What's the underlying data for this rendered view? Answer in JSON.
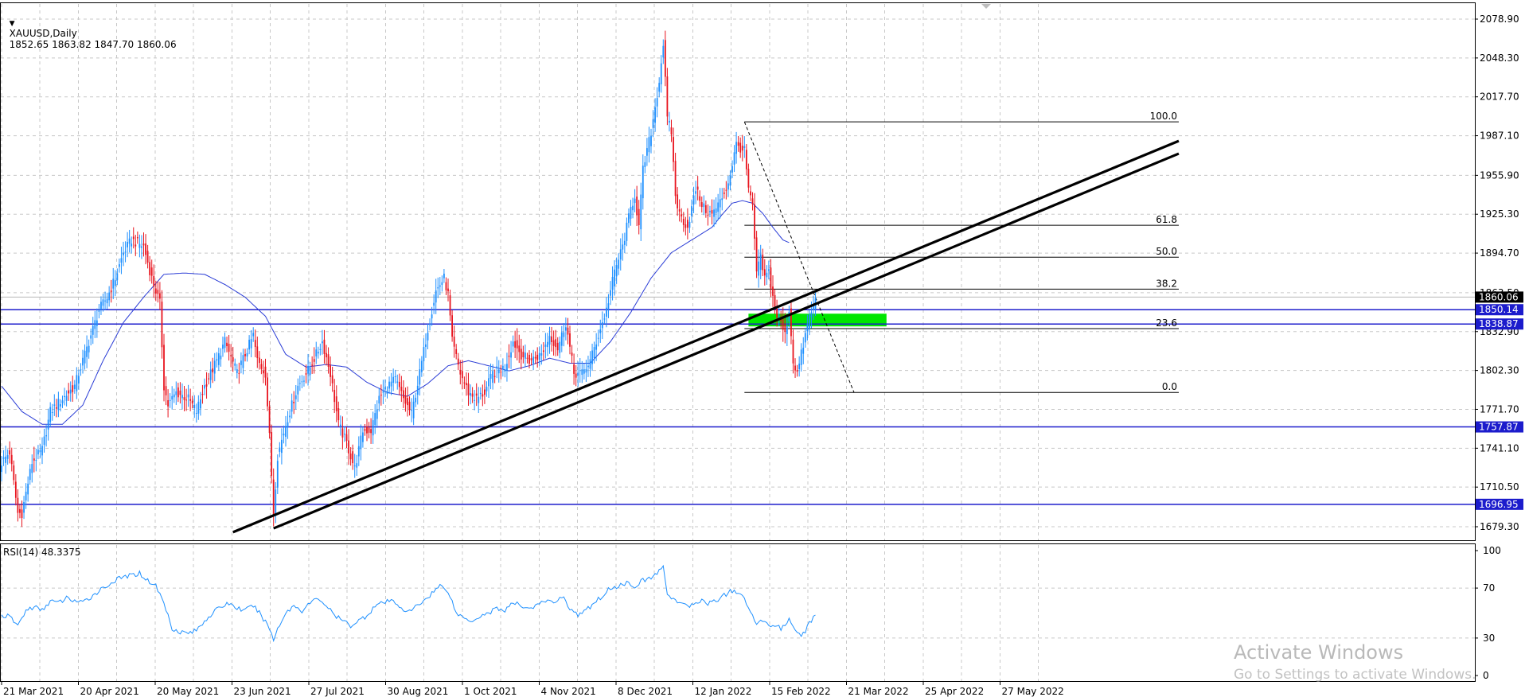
{
  "header": {
    "symbol": "XAUUSD,Daily",
    "ohlc": "1852.65 1863.82 1847.70 1860.06"
  },
  "rsi_header": "RSI(14) 48.3375",
  "watermark": {
    "line1": "Activate Windows",
    "line2": "Go to Settings to activate Windows."
  },
  "colors": {
    "bull": "#1e90ff",
    "bear": "#e8141e",
    "ma": "#2a3cd6",
    "hline": "#1c1ccc",
    "trend": "#000000",
    "zone": "#00e600",
    "grid": "#c8c8c8"
  },
  "chart_data": [
    {
      "type": "candlestick",
      "title": "XAUUSD,Daily",
      "ylim": [
        1665,
        2095
      ],
      "y_ticks": [
        "2078.90",
        "2048.30",
        "2017.70",
        "1987.10",
        "1955.90",
        "1925.30",
        "1894.70",
        "1863.50",
        "1832.90",
        "1802.30",
        "1771.70",
        "1741.10",
        "1710.50",
        "1679.30"
      ],
      "x_tick_labels": [
        "21 Mar 2021",
        "20 Apr 2021",
        "20 May 2021",
        "23 Jun 2021",
        "27 Jul 2021",
        "30 Aug 2021",
        "1 Oct 2021",
        "4 Nov 2021",
        "8 Dec 2021",
        "12 Jan 2022",
        "15 Feb 2022",
        "21 Mar 2022",
        "25 Apr 2022",
        "27 May 2022"
      ],
      "close_anchors": [
        [
          0,
          1730
        ],
        [
          4,
          1738
        ],
        [
          8,
          1690
        ],
        [
          10,
          1690
        ],
        [
          15,
          1730
        ],
        [
          20,
          1740
        ],
        [
          24,
          1770
        ],
        [
          30,
          1780
        ],
        [
          36,
          1790
        ],
        [
          40,
          1810
        ],
        [
          44,
          1830
        ],
        [
          48,
          1850
        ],
        [
          52,
          1860
        ],
        [
          56,
          1875
        ],
        [
          60,
          1895
        ],
        [
          64,
          1905
        ],
        [
          70,
          1900
        ],
        [
          74,
          1875
        ],
        [
          78,
          1855
        ],
        [
          80,
          1790
        ],
        [
          82,
          1775
        ],
        [
          86,
          1785
        ],
        [
          92,
          1780
        ],
        [
          96,
          1770
        ],
        [
          100,
          1790
        ],
        [
          106,
          1810
        ],
        [
          110,
          1825
        ],
        [
          116,
          1800
        ],
        [
          120,
          1815
        ],
        [
          124,
          1830
        ],
        [
          126,
          1810
        ],
        [
          130,
          1800
        ],
        [
          132,
          1750
        ],
        [
          134,
          1690
        ],
        [
          136,
          1735
        ],
        [
          140,
          1760
        ],
        [
          146,
          1790
        ],
        [
          152,
          1805
        ],
        [
          158,
          1825
        ],
        [
          162,
          1800
        ],
        [
          166,
          1760
        ],
        [
          170,
          1745
        ],
        [
          174,
          1725
        ],
        [
          178,
          1755
        ],
        [
          182,
          1755
        ],
        [
          186,
          1780
        ],
        [
          190,
          1790
        ],
        [
          194,
          1795
        ],
        [
          198,
          1780
        ],
        [
          202,
          1768
        ],
        [
          206,
          1800
        ],
        [
          210,
          1835
        ],
        [
          214,
          1865
        ],
        [
          218,
          1875
        ],
        [
          220,
          1862
        ],
        [
          222,
          1825
        ],
        [
          226,
          1800
        ],
        [
          230,
          1785
        ],
        [
          234,
          1780
        ],
        [
          238,
          1785
        ],
        [
          242,
          1800
        ],
        [
          248,
          1805
        ],
        [
          252,
          1825
        ],
        [
          256,
          1815
        ],
        [
          260,
          1810
        ],
        [
          266,
          1815
        ],
        [
          270,
          1830
        ],
        [
          274,
          1820
        ],
        [
          278,
          1840
        ],
        [
          282,
          1800
        ],
        [
          286,
          1800
        ],
        [
          290,
          1810
        ],
        [
          294,
          1830
        ],
        [
          298,
          1850
        ],
        [
          302,
          1880
        ],
        [
          306,
          1900
        ],
        [
          310,
          1930
        ],
        [
          312,
          1940
        ],
        [
          314,
          1915
        ],
        [
          316,
          1960
        ],
        [
          320,
          1990
        ],
        [
          324,
          2030
        ],
        [
          326,
          2060
        ],
        [
          328,
          2000
        ],
        [
          330,
          1990
        ],
        [
          332,
          1940
        ],
        [
          334,
          1925
        ],
        [
          338,
          1915
        ],
        [
          342,
          1945
        ],
        [
          346,
          1930
        ],
        [
          350,
          1925
        ],
        [
          354,
          1935
        ],
        [
          358,
          1950
        ],
        [
          362,
          1980
        ],
        [
          366,
          1975
        ],
        [
          368,
          1945
        ],
        [
          370,
          1930
        ],
        [
          372,
          1880
        ],
        [
          374,
          1890
        ],
        [
          376,
          1875
        ],
        [
          378,
          1880
        ],
        [
          380,
          1860
        ],
        [
          382,
          1845
        ],
        [
          384,
          1840
        ],
        [
          386,
          1830
        ],
        [
          388,
          1850
        ],
        [
          390,
          1810
        ],
        [
          392,
          1800
        ],
        [
          394,
          1815
        ],
        [
          396,
          1830
        ],
        [
          398,
          1845
        ],
        [
          400,
          1852
        ],
        [
          401,
          1860
        ]
      ],
      "moving_average_anchors": [
        [
          0,
          1790
        ],
        [
          10,
          1770
        ],
        [
          20,
          1760
        ],
        [
          30,
          1760
        ],
        [
          40,
          1775
        ],
        [
          50,
          1810
        ],
        [
          60,
          1840
        ],
        [
          70,
          1860
        ],
        [
          80,
          1878
        ],
        [
          90,
          1879
        ],
        [
          100,
          1878
        ],
        [
          110,
          1870
        ],
        [
          120,
          1860
        ],
        [
          130,
          1845
        ],
        [
          140,
          1815
        ],
        [
          150,
          1805
        ],
        [
          160,
          1807
        ],
        [
          170,
          1805
        ],
        [
          180,
          1793
        ],
        [
          190,
          1785
        ],
        [
          200,
          1782
        ],
        [
          210,
          1792
        ],
        [
          220,
          1806
        ],
        [
          230,
          1810
        ],
        [
          240,
          1806
        ],
        [
          250,
          1802
        ],
        [
          260,
          1806
        ],
        [
          270,
          1812
        ],
        [
          280,
          1808
        ],
        [
          290,
          1808
        ],
        [
          300,
          1825
        ],
        [
          310,
          1848
        ],
        [
          320,
          1875
        ],
        [
          330,
          1895
        ],
        [
          340,
          1905
        ],
        [
          350,
          1915
        ],
        [
          355,
          1925
        ],
        [
          360,
          1934
        ],
        [
          365,
          1936
        ],
        [
          370,
          1934
        ],
        [
          375,
          1926
        ],
        [
          380,
          1915
        ],
        [
          385,
          1905
        ],
        [
          388,
          1903
        ]
      ],
      "horizontal_levels": [
        1850.14,
        1838.87,
        1757.87,
        1696.95
      ],
      "current_price": 1860.06,
      "price_labels": [
        "1860.06",
        "1850.14",
        "1838.87",
        "1757.87",
        "1696.95"
      ],
      "fibonacci": {
        "high": 1998,
        "low": 1785,
        "start_bar": 366,
        "end_bar": 580,
        "level_labels": [
          "100.0",
          "61.8",
          "50.0",
          "38.2",
          "23.6",
          "0.0"
        ],
        "levels": [
          1.0,
          0.618,
          0.5,
          0.382,
          0.236,
          0.0
        ]
      },
      "trend_lines": [
        {
          "start": [
            114,
            1675
          ],
          "end": [
            580,
            1983
          ]
        },
        {
          "start": [
            134,
            1678
          ],
          "end": [
            580,
            1973
          ]
        }
      ],
      "fib_diagonal": {
        "start": [
          366,
          1998
        ],
        "end": [
          420,
          1785
        ]
      },
      "zone": {
        "start_bar": 368,
        "end_bar": 436,
        "top": 1847,
        "bottom": 1837
      }
    },
    {
      "type": "line",
      "title": "RSI(14) 48.3375",
      "ylim": [
        0,
        100
      ],
      "y_ticks": [
        "100",
        "70",
        "30",
        "0"
      ],
      "anchors": [
        [
          0,
          48
        ],
        [
          4,
          47
        ],
        [
          8,
          40
        ],
        [
          12,
          52
        ],
        [
          16,
          55
        ],
        [
          20,
          52
        ],
        [
          24,
          60
        ],
        [
          28,
          58
        ],
        [
          32,
          62
        ],
        [
          36,
          60
        ],
        [
          40,
          58
        ],
        [
          44,
          63
        ],
        [
          48,
          68
        ],
        [
          52,
          72
        ],
        [
          56,
          76
        ],
        [
          60,
          79
        ],
        [
          64,
          80
        ],
        [
          68,
          82
        ],
        [
          72,
          76
        ],
        [
          76,
          72
        ],
        [
          80,
          58
        ],
        [
          84,
          38
        ],
        [
          88,
          35
        ],
        [
          92,
          34
        ],
        [
          96,
          36
        ],
        [
          100,
          44
        ],
        [
          104,
          50
        ],
        [
          108,
          55
        ],
        [
          112,
          58
        ],
        [
          116,
          54
        ],
        [
          120,
          52
        ],
        [
          124,
          56
        ],
        [
          128,
          48
        ],
        [
          132,
          38
        ],
        [
          134,
          28
        ],
        [
          136,
          38
        ],
        [
          140,
          50
        ],
        [
          144,
          56
        ],
        [
          148,
          52
        ],
        [
          152,
          58
        ],
        [
          156,
          62
        ],
        [
          160,
          56
        ],
        [
          164,
          48
        ],
        [
          168,
          44
        ],
        [
          172,
          40
        ],
        [
          176,
          44
        ],
        [
          180,
          48
        ],
        [
          184,
          56
        ],
        [
          188,
          58
        ],
        [
          192,
          60
        ],
        [
          196,
          56
        ],
        [
          200,
          50
        ],
        [
          204,
          55
        ],
        [
          208,
          60
        ],
        [
          212,
          66
        ],
        [
          216,
          72
        ],
        [
          220,
          68
        ],
        [
          224,
          50
        ],
        [
          228,
          46
        ],
        [
          232,
          44
        ],
        [
          236,
          48
        ],
        [
          240,
          50
        ],
        [
          244,
          54
        ],
        [
          248,
          52
        ],
        [
          252,
          58
        ],
        [
          256,
          56
        ],
        [
          260,
          54
        ],
        [
          264,
          56
        ],
        [
          268,
          60
        ],
        [
          272,
          58
        ],
        [
          276,
          64
        ],
        [
          280,
          54
        ],
        [
          284,
          48
        ],
        [
          288,
          52
        ],
        [
          292,
          58
        ],
        [
          296,
          64
        ],
        [
          300,
          70
        ],
        [
          304,
          72
        ],
        [
          308,
          74
        ],
        [
          312,
          72
        ],
        [
          316,
          76
        ],
        [
          320,
          78
        ],
        [
          324,
          84
        ],
        [
          326,
          86
        ],
        [
          328,
          66
        ],
        [
          332,
          60
        ],
        [
          336,
          56
        ],
        [
          340,
          56
        ],
        [
          344,
          60
        ],
        [
          348,
          58
        ],
        [
          352,
          60
        ],
        [
          356,
          64
        ],
        [
          360,
          68
        ],
        [
          364,
          66
        ],
        [
          368,
          54
        ],
        [
          372,
          42
        ],
        [
          376,
          44
        ],
        [
          380,
          40
        ],
        [
          384,
          38
        ],
        [
          388,
          44
        ],
        [
          392,
          36
        ],
        [
          394,
          32
        ],
        [
          396,
          36
        ],
        [
          398,
          42
        ],
        [
          400,
          47
        ],
        [
          401,
          48
        ]
      ]
    }
  ]
}
